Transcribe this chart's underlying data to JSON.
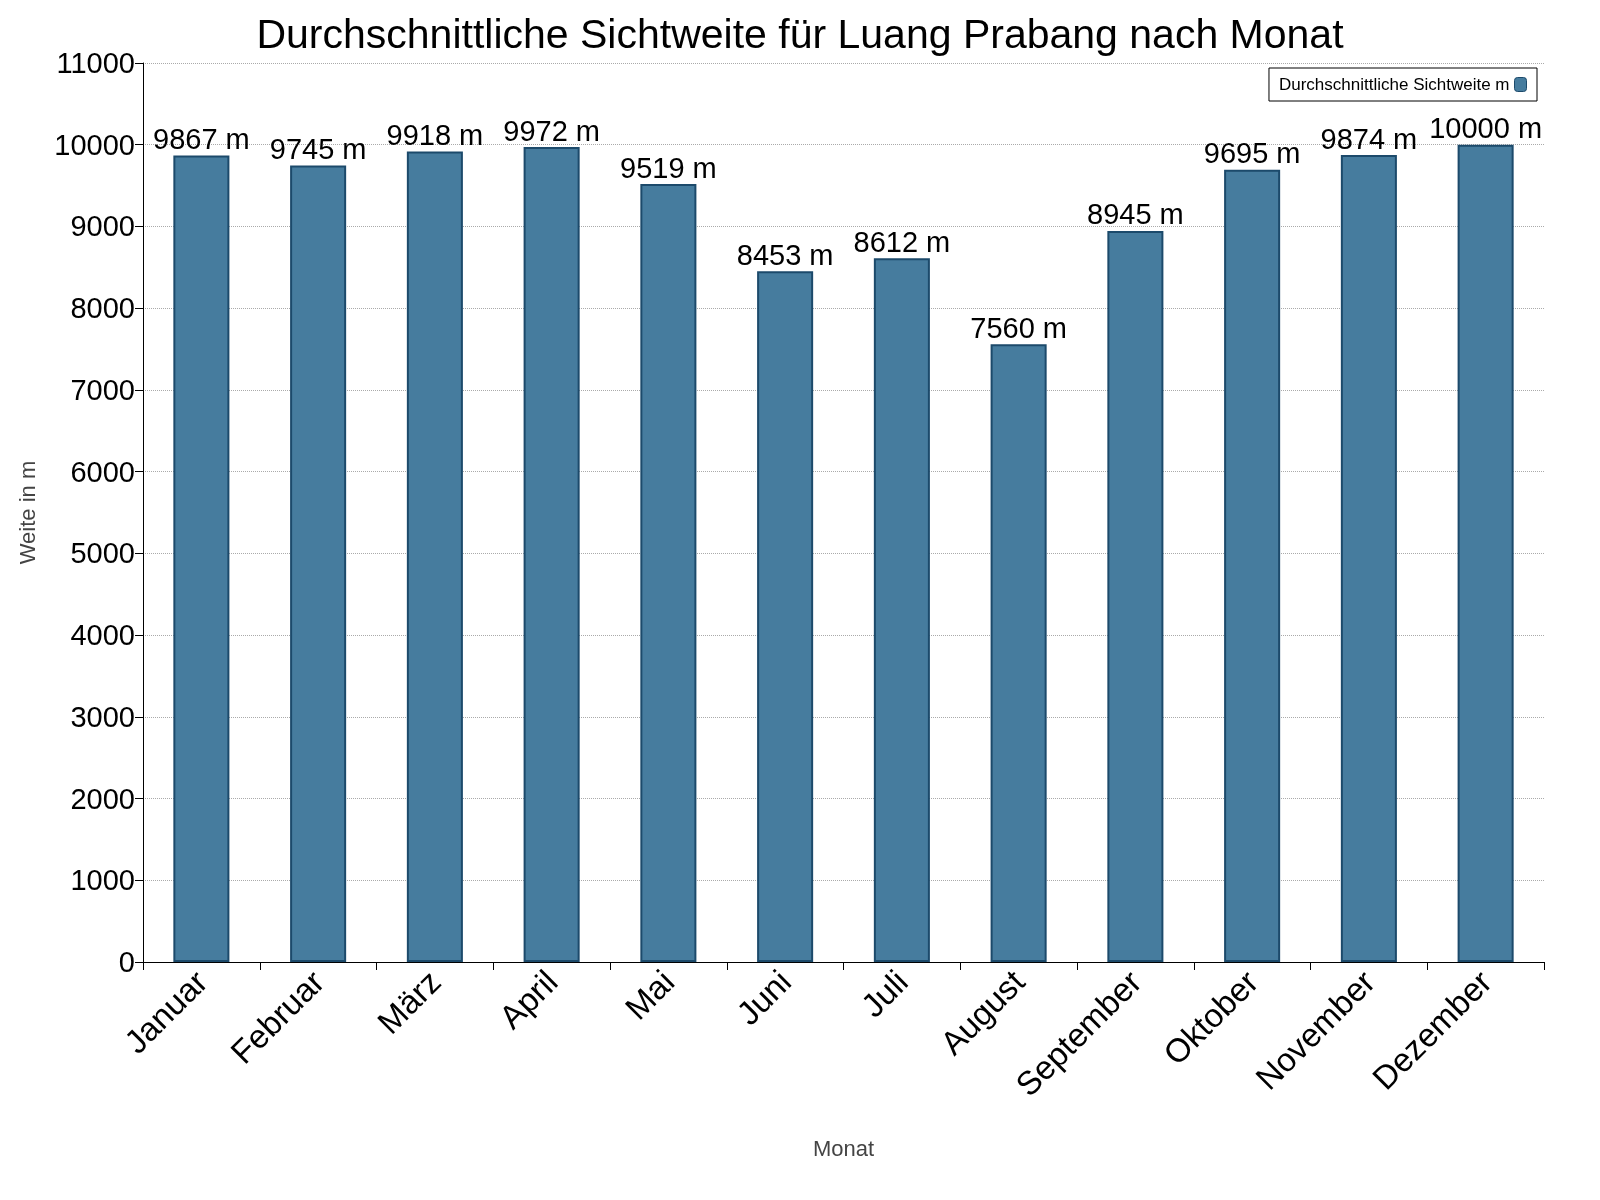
{
  "chart_data": {
    "type": "bar",
    "title": "Durchschnittliche Sichtweite für Luang Prabang nach Monat",
    "xlabel": "Monat",
    "ylabel": "Weite in m",
    "categories": [
      "Januar",
      "Februar",
      "März",
      "April",
      "Mai",
      "Juni",
      "Juli",
      "August",
      "September",
      "Oktober",
      "November",
      "Dezember"
    ],
    "series": [
      {
        "name": "Durchschnittliche Sichtweite m",
        "color": "#467c9e",
        "values": [
          9867,
          9745,
          9918,
          9972,
          9519,
          8453,
          8612,
          7560,
          8945,
          9695,
          9874,
          10000
        ],
        "value_labels": [
          "9867 m",
          "9745 m",
          "9918 m",
          "9972 m",
          "9519 m",
          "8453 m",
          "8612 m",
          "7560 m",
          "8945 m",
          "9695 m",
          "9874 m",
          "10000 m"
        ]
      }
    ],
    "ylim": [
      0,
      11000
    ],
    "yticks": [
      0,
      1000,
      2000,
      3000,
      4000,
      5000,
      6000,
      7000,
      8000,
      9000,
      10000,
      11000
    ],
    "grid": "y",
    "legend": "top right"
  }
}
